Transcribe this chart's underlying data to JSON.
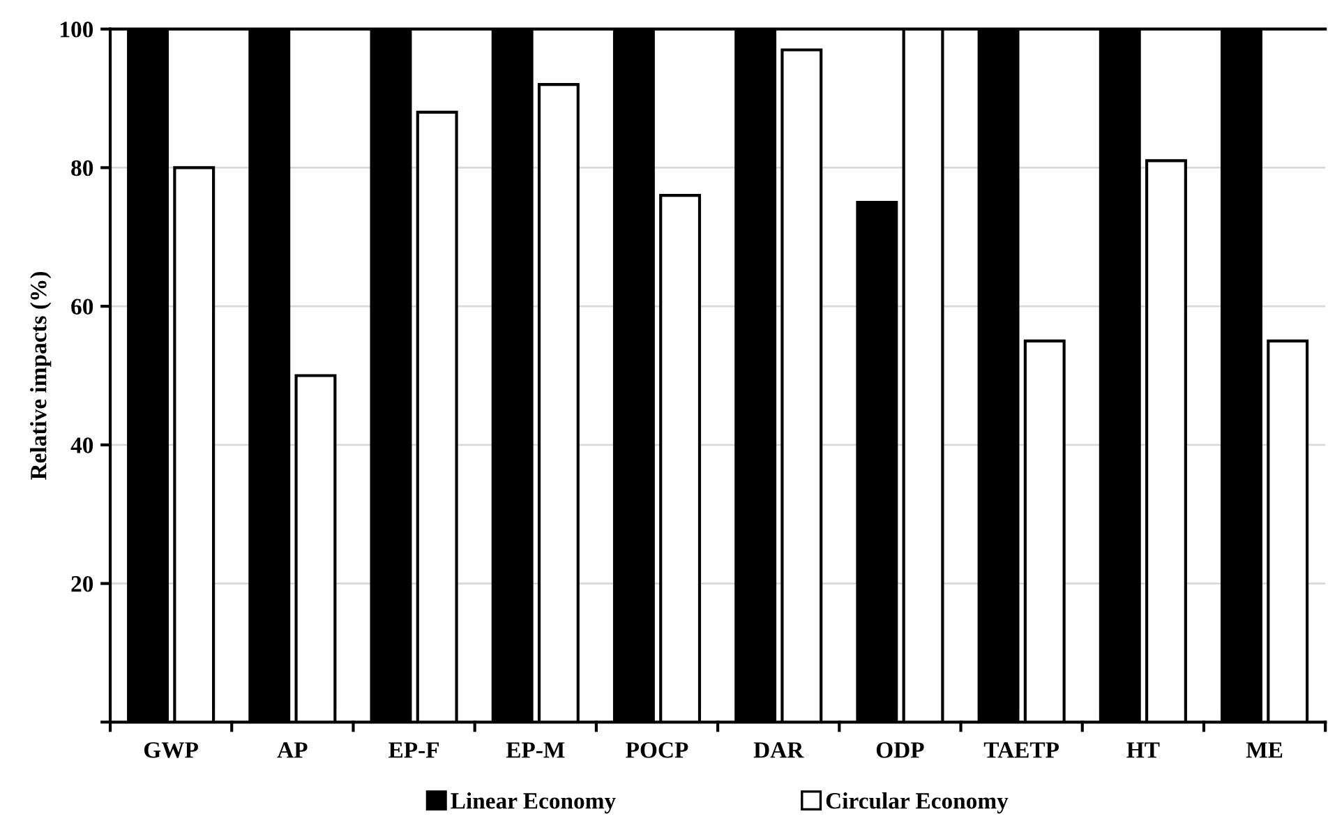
{
  "chart_data": {
    "type": "bar",
    "ylabel": "Relative impacts (%)",
    "categories": [
      "GWP",
      "AP",
      "EP-F",
      "EP-M",
      "POCP",
      "DAR",
      "ODP",
      "TAETP",
      "HT",
      "ME"
    ],
    "series": [
      {
        "name": "Linear Economy",
        "color": "#000000",
        "values": [
          100,
          100,
          100,
          100,
          100,
          100,
          75,
          100,
          100,
          100
        ]
      },
      {
        "name": "Circular Economy",
        "color": "#ffffff",
        "values": [
          80,
          50,
          88,
          92,
          76,
          97,
          100,
          55,
          81,
          55
        ]
      }
    ],
    "ylim": [
      0,
      100
    ],
    "yticks": [
      {
        "value": 0,
        "label": null
      },
      20,
      40,
      60,
      80,
      100
    ],
    "grid": "y",
    "legend": "bottom"
  }
}
